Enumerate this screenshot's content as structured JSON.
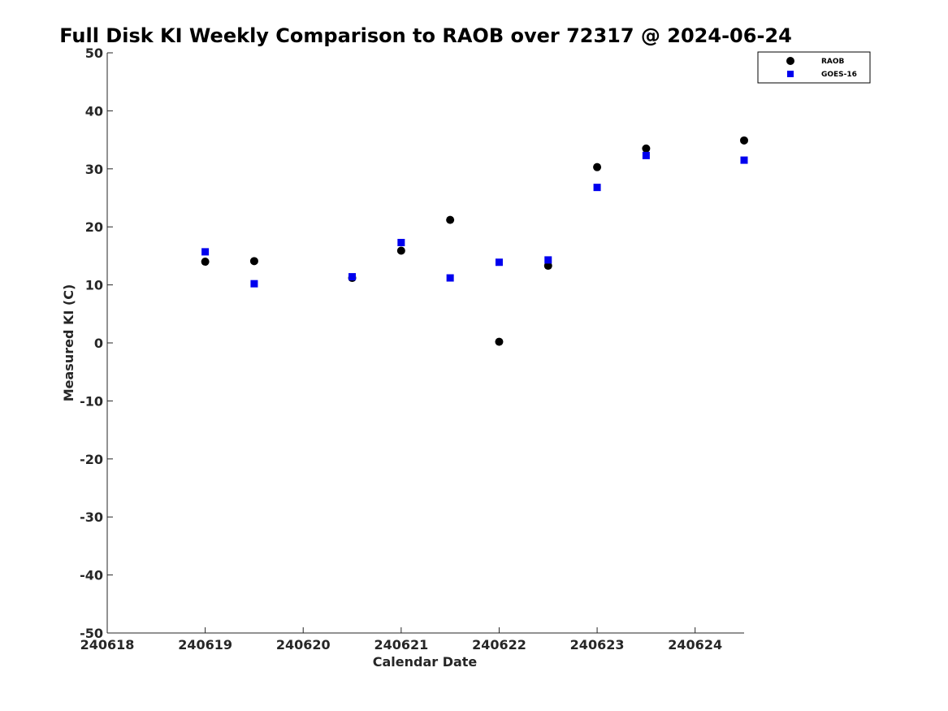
{
  "chart_data": {
    "type": "scatter",
    "title": "Full Disk KI Weekly Comparison to RAOB over 72317 @ 2024-06-24",
    "xlabel": "Calendar Date",
    "ylabel": "Measured KI (C)",
    "xlim": [
      240618,
      240624.5
    ],
    "ylim": [
      -50,
      50
    ],
    "xticks": [
      240618,
      240619,
      240620,
      240621,
      240622,
      240623,
      240624
    ],
    "xtick_labels": [
      "240618",
      "240619",
      "240620",
      "240621",
      "240622",
      "240623",
      "240624"
    ],
    "yticks": [
      50,
      40,
      30,
      20,
      10,
      0,
      -10,
      -20,
      -30,
      -40,
      -50
    ],
    "ytick_labels": [
      "50",
      "40",
      "30",
      "20",
      "10",
      "0",
      "-10",
      "-20",
      "-30",
      "-40",
      "-50"
    ],
    "grid": false,
    "legend_position": "top-right",
    "series": [
      {
        "name": "RAOB",
        "marker": "circle",
        "color": "#000000",
        "x": [
          240619,
          240619.5,
          240620.5,
          240621,
          240621.5,
          240622,
          240622.5,
          240623,
          240623.5,
          240624.5
        ],
        "y": [
          14.0,
          14.1,
          11.2,
          15.9,
          21.2,
          0.2,
          13.3,
          30.3,
          33.5,
          34.9
        ]
      },
      {
        "name": "GOES-16",
        "marker": "square",
        "color": "#0000ee",
        "x": [
          240619,
          240619.5,
          240620.5,
          240621,
          240621.5,
          240622,
          240622.5,
          240623,
          240623.5,
          240624.5
        ],
        "y": [
          15.7,
          10.2,
          11.4,
          17.3,
          11.2,
          13.9,
          14.3,
          26.8,
          32.3,
          31.5
        ]
      }
    ]
  }
}
